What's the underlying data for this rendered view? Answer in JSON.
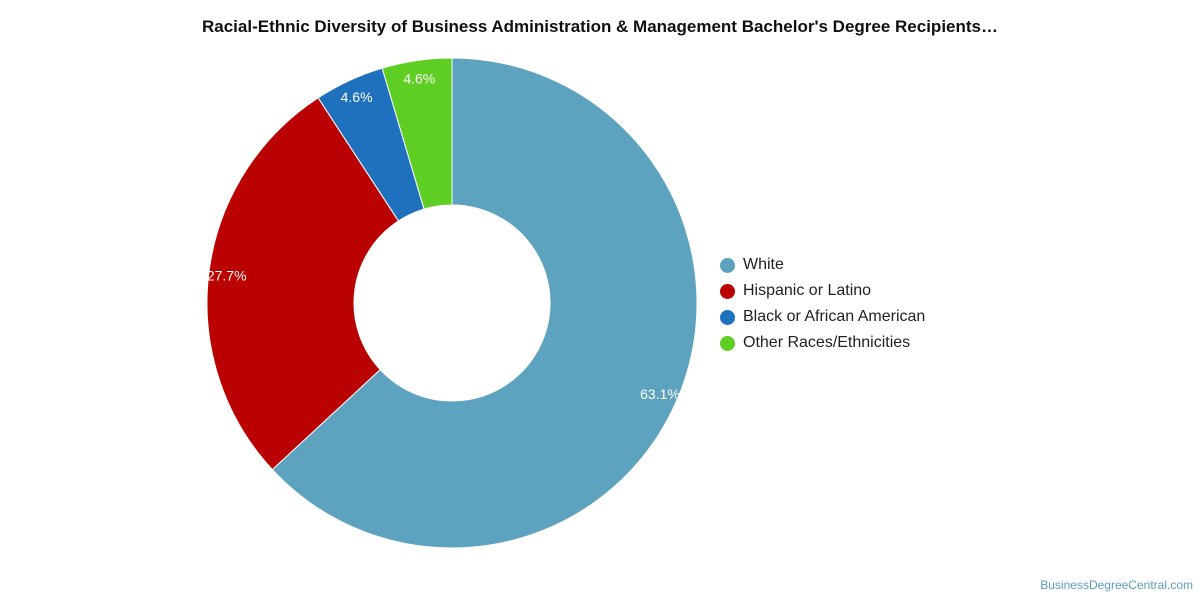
{
  "chart_data": {
    "type": "pie",
    "title": "Racial-Ethnic Diversity of Business Administration & Management Bachelor's Degree Recipients…",
    "donut": true,
    "legend_position": "right",
    "slices": [
      {
        "label": "White",
        "value": 63.1,
        "display": "63.1%",
        "color": "#5da2be"
      },
      {
        "label": "Hispanic or Latino",
        "value": 27.7,
        "display": "27.7%",
        "color": "#bb0202"
      },
      {
        "label": "Black or African American",
        "value": 4.6,
        "display": "4.6%",
        "color": "#1f71be"
      },
      {
        "label": "Other Races/Ethnicities",
        "value": 4.6,
        "display": "4.6%",
        "color": "#5fce23"
      }
    ]
  },
  "credit": "BusinessDegreeCentral.com"
}
